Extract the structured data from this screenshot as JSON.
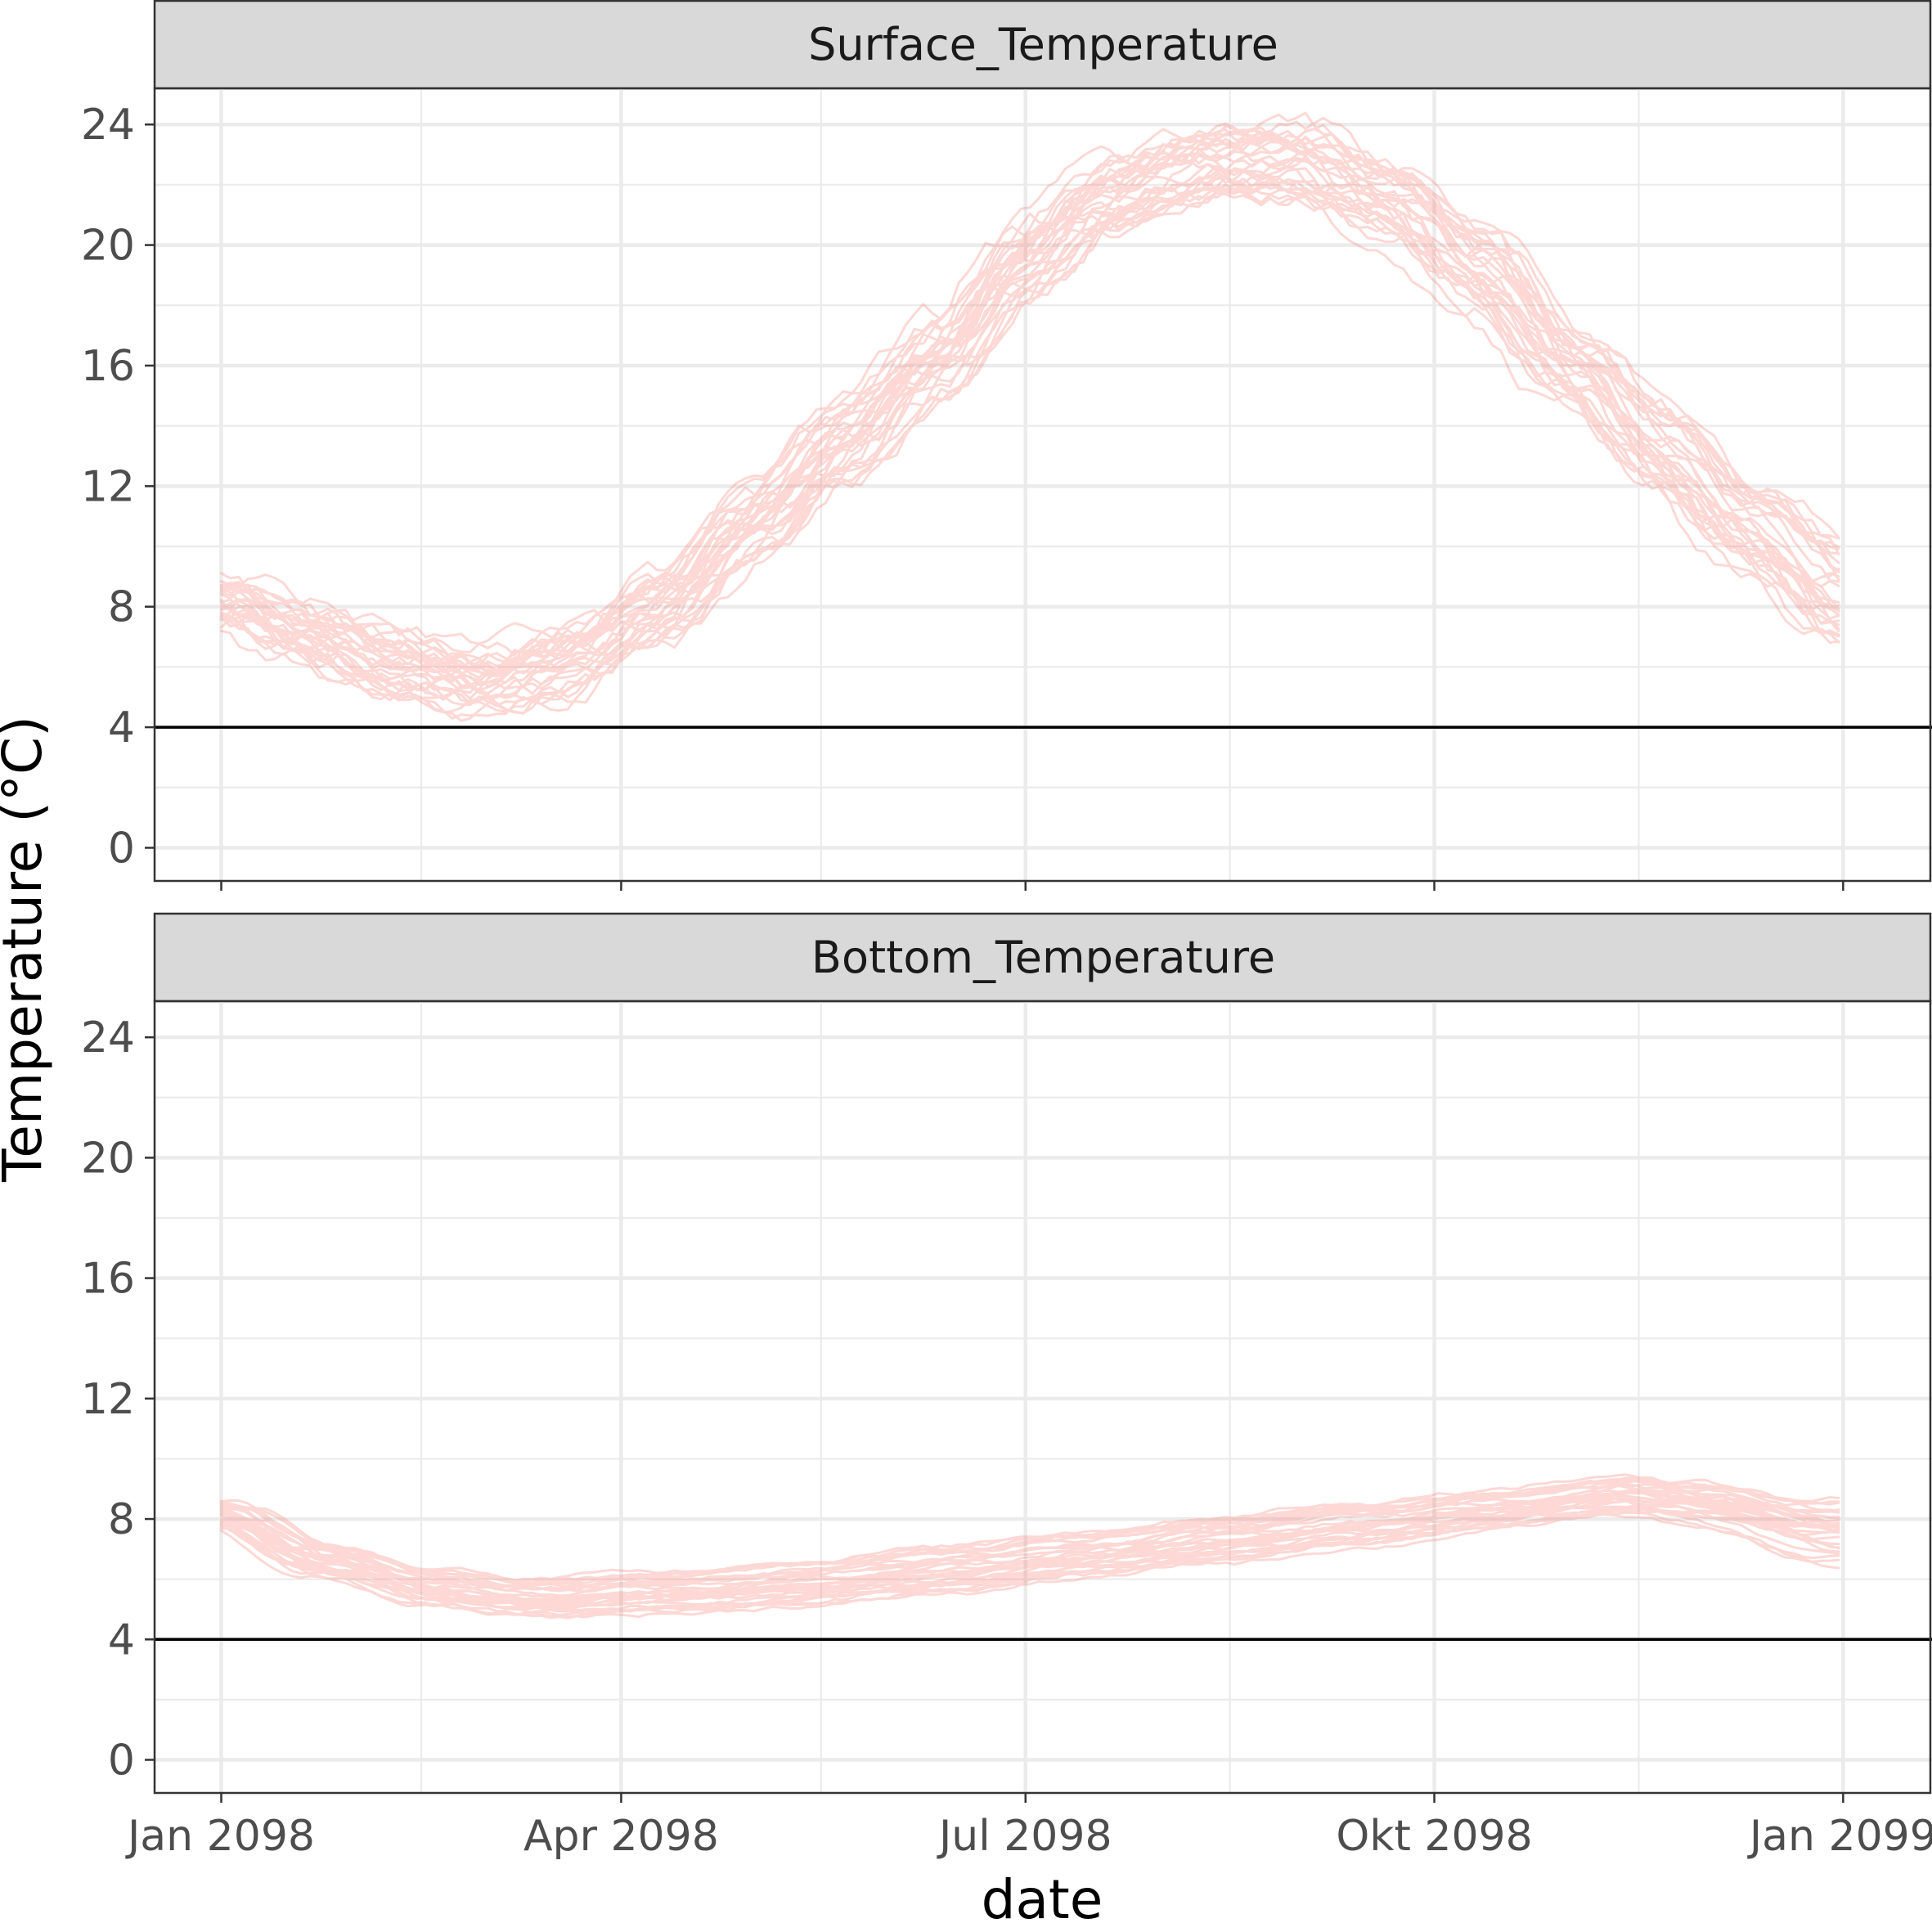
{
  "chart_data": {
    "type": "line",
    "facet_layout": "vertical",
    "x_axis": {
      "label": "date",
      "range": [
        "2097-12-17",
        "2099-01-21"
      ],
      "ticks": [
        {
          "date": "2098-01-01",
          "label": "Jan 2098"
        },
        {
          "date": "2098-04-01",
          "label": "Apr 2098"
        },
        {
          "date": "2098-07-01",
          "label": "Jul 2098"
        },
        {
          "date": "2098-10-01",
          "label": "Okt 2098"
        },
        {
          "date": "2099-01-01",
          "label": "Jan 2099"
        }
      ],
      "minor_ticks": [
        "2098-02-15",
        "2098-05-16",
        "2098-08-16",
        "2098-11-16"
      ]
    },
    "y_axis": {
      "label": "Temperature (°C)",
      "range": [
        -1.1,
        25.2
      ],
      "ticks": [
        0,
        4,
        8,
        12,
        16,
        20,
        24
      ],
      "minor_ticks": [
        2,
        6,
        10,
        14,
        18,
        22
      ]
    },
    "reference_line": {
      "y": 4,
      "color": "#000000"
    },
    "series_color": "#F8766D",
    "series_opacity": 0.28,
    "panels": [
      {
        "name": "Surface_Temperature",
        "ensemble_members": 30,
        "mean_curve": {
          "dates": [
            "2098-01-01",
            "2098-01-20",
            "2098-02-10",
            "2098-03-01",
            "2098-03-20",
            "2098-04-10",
            "2098-05-01",
            "2098-05-20",
            "2098-06-10",
            "2098-07-01",
            "2098-07-20",
            "2098-08-10",
            "2098-09-01",
            "2098-09-20",
            "2098-10-10",
            "2098-11-01",
            "2098-11-20",
            "2098-12-10",
            "2098-12-31"
          ],
          "values": [
            8.2,
            7.0,
            6.1,
            5.6,
            6.3,
            8.0,
            10.8,
            13.4,
            16.2,
            19.6,
            21.6,
            22.7,
            22.8,
            21.6,
            19.3,
            16.1,
            13.4,
            10.8,
            8.5
          ]
        }
      },
      {
        "name": "Bottom_Temperature",
        "ensemble_members": 30,
        "mean_curve": {
          "dates": [
            "2098-01-01",
            "2098-01-25",
            "2098-02-20",
            "2098-03-15",
            "2098-04-15",
            "2098-05-15",
            "2098-06-15",
            "2098-07-15",
            "2098-08-15",
            "2098-09-15",
            "2098-10-15",
            "2098-11-15",
            "2098-12-01",
            "2098-12-31"
          ],
          "values": [
            8.2,
            6.6,
            5.7,
            5.4,
            5.6,
            5.9,
            6.3,
            6.8,
            7.3,
            7.8,
            8.3,
            8.8,
            8.5,
            7.6
          ]
        }
      }
    ]
  }
}
